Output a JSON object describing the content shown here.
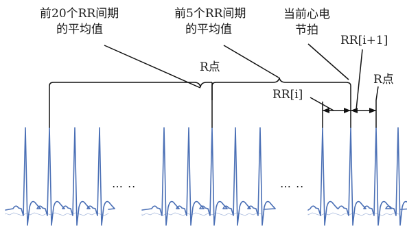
{
  "labels": {
    "avg20_line1": "前20个RR间期",
    "avg20_line2": "的平均值",
    "avg5_line1": "前5个RR间期",
    "avg5_line2": "的平均值",
    "current_line1": "当前心电",
    "current_line2": "节拍",
    "rr_next": "RR[i+1]",
    "r_point_left": "R点",
    "r_point_right": "R点",
    "rr_i": "RR[i]"
  },
  "ellipses": {
    "left": "… ..",
    "right": "… .."
  },
  "colors": {
    "ecg_trace": "#4a6fb5",
    "annotation": "#111111"
  }
}
